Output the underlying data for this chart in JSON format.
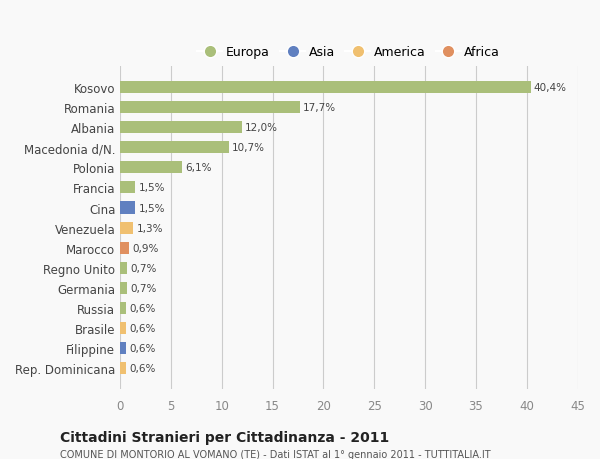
{
  "categories": [
    "Rep. Dominicana",
    "Filippine",
    "Brasile",
    "Russia",
    "Germania",
    "Regno Unito",
    "Marocco",
    "Venezuela",
    "Cina",
    "Francia",
    "Polonia",
    "Macedonia d/N.",
    "Albania",
    "Romania",
    "Kosovo"
  ],
  "values": [
    0.6,
    0.6,
    0.6,
    0.6,
    0.7,
    0.7,
    0.9,
    1.3,
    1.5,
    1.5,
    6.1,
    10.7,
    12.0,
    17.7,
    40.4
  ],
  "labels": [
    "0,6%",
    "0,6%",
    "0,6%",
    "0,6%",
    "0,7%",
    "0,7%",
    "0,9%",
    "1,3%",
    "1,5%",
    "1,5%",
    "6,1%",
    "10,7%",
    "12,0%",
    "17,7%",
    "40,4%"
  ],
  "colors": [
    "#f0c070",
    "#6080c0",
    "#f0c070",
    "#aabf7a",
    "#aabf7a",
    "#aabf7a",
    "#e09060",
    "#f0c070",
    "#6080c0",
    "#aabf7a",
    "#aabf7a",
    "#aabf7a",
    "#aabf7a",
    "#aabf7a",
    "#aabf7a"
  ],
  "legend_labels": [
    "Europa",
    "Asia",
    "America",
    "Africa"
  ],
  "legend_colors": [
    "#aabf7a",
    "#6080c0",
    "#f0c070",
    "#e09060"
  ],
  "xlim": [
    0,
    45
  ],
  "xticks": [
    0,
    5,
    10,
    15,
    20,
    25,
    30,
    35,
    40,
    45
  ],
  "title": "Cittadini Stranieri per Cittadinanza - 2011",
  "subtitle": "COMUNE DI MONTORIO AL VOMANO (TE) - Dati ISTAT al 1° gennaio 2011 - TUTTITALIA.IT",
  "background_color": "#f9f9f9",
  "grid_color": "#cccccc",
  "bar_height": 0.6,
  "figsize": [
    6.0,
    4.6
  ],
  "dpi": 100
}
